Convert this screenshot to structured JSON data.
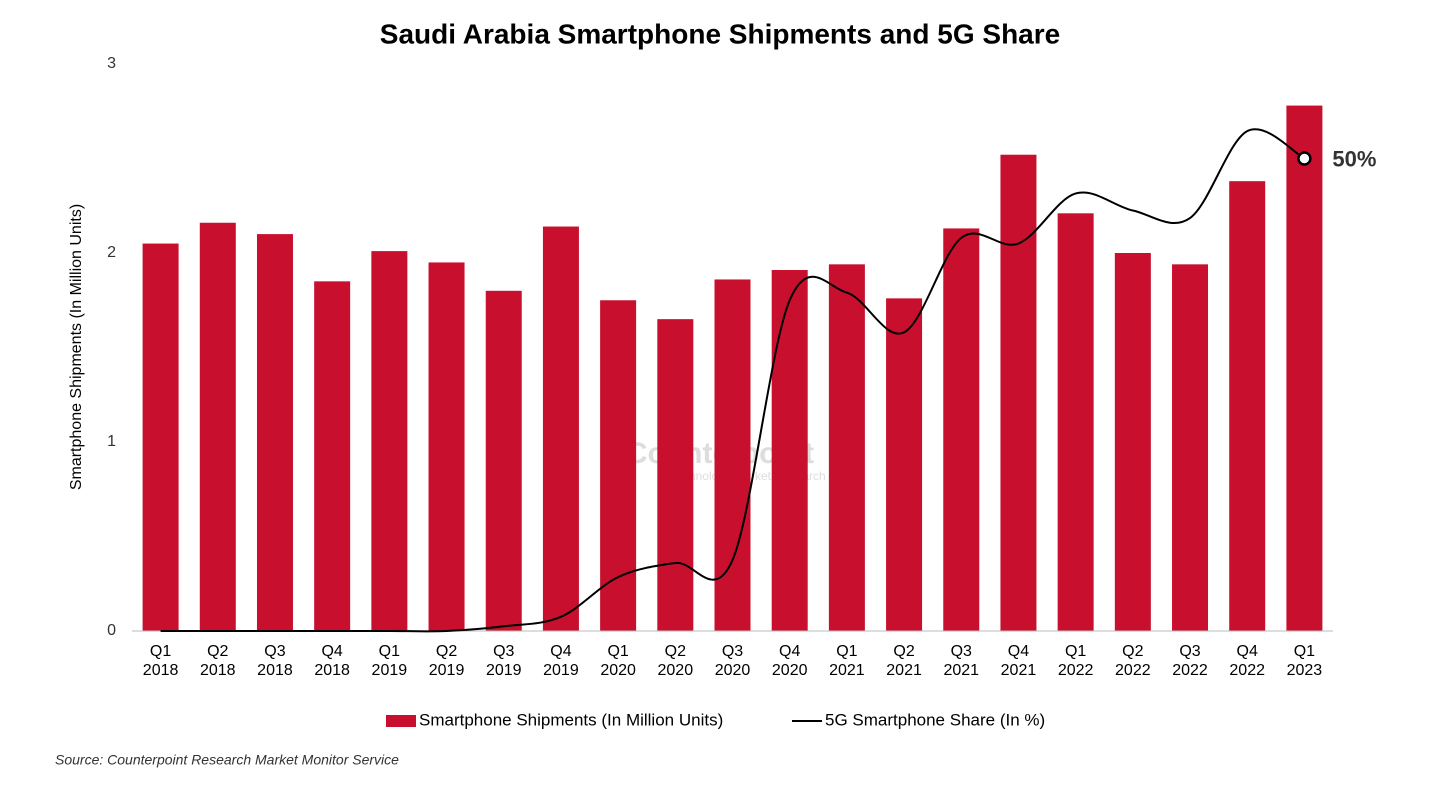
{
  "chart_data": {
    "type": "bar-line",
    "title": "Saudi Arabia Smartphone Shipments and 5G Share",
    "y_label": "Smartphone Shipments (In Million Units)",
    "source": "Source: Counterpoint Research Market Monitor Service",
    "watermark": [
      "Counterpoint",
      "Technology Market Research"
    ],
    "categories": [
      "Q1 2018",
      "Q2 2018",
      "Q3 2018",
      "Q4 2018",
      "Q1 2019",
      "Q2 2019",
      "Q3 2019",
      "Q4 2019",
      "Q1 2020",
      "Q2 2020",
      "Q3 2020",
      "Q4 2020",
      "Q1 2021",
      "Q2 2021",
      "Q3 2021",
      "Q4 2021",
      "Q1 2022",
      "Q2 2022",
      "Q3 2022",
      "Q4 2022",
      "Q1 2023"
    ],
    "series": [
      {
        "name": "Smartphone Shipments (In Million Units)",
        "type": "bar",
        "color": "#c8102e",
        "values": [
          2.05,
          2.16,
          2.1,
          1.85,
          2.01,
          1.95,
          1.8,
          2.14,
          1.75,
          1.65,
          1.86,
          1.91,
          1.94,
          1.76,
          2.13,
          2.52,
          2.21,
          2.0,
          1.94,
          2.38,
          2.78
        ]
      },
      {
        "name": "5G Smartphone Share (In %)",
        "type": "line",
        "axis": "y2",
        "color": "#000000",
        "values": [
          0,
          0,
          0,
          0,
          0,
          0,
          0.5,
          1.5,
          5.7,
          7.2,
          7.5,
          35,
          35.8,
          31.6,
          41.6,
          41,
          46.3,
          44.5,
          43.7,
          52.9,
          50
        ],
        "value_labels": [
          null,
          null,
          null,
          null,
          null,
          null,
          null,
          null,
          null,
          null,
          null,
          null,
          null,
          null,
          null,
          null,
          null,
          null,
          null,
          null,
          "50%"
        ]
      }
    ],
    "ylim": [
      0,
      3
    ],
    "yticks": [
      0,
      1,
      2,
      3
    ],
    "y2lim": [
      0,
      60
    ],
    "legend": "bottom"
  }
}
